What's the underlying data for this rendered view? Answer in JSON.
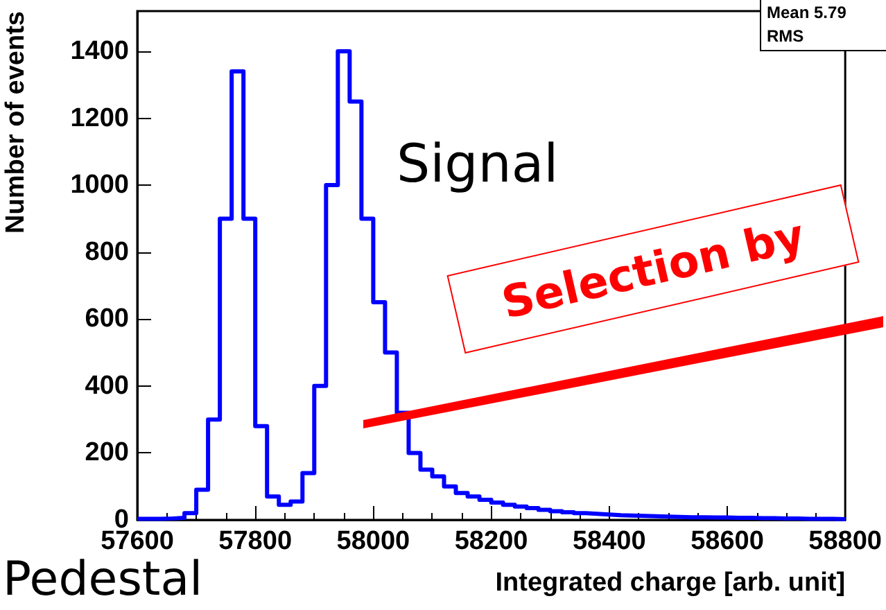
{
  "chart_data": {
    "type": "histogram",
    "xlabel": "Integrated charge [arb. unit]",
    "ylabel": "Number of events",
    "color": "#0000ff",
    "bins": [
      57600,
      57620,
      57640,
      57660,
      57680,
      57700,
      57720,
      57740,
      57760,
      57780,
      57800,
      57820,
      57840,
      57860,
      57880,
      57900,
      57920,
      57940,
      57960,
      57980,
      58000,
      58020,
      58040,
      58060,
      58080,
      58100,
      58120,
      58140,
      58160,
      58180,
      58200,
      58220,
      58240,
      58260,
      58280,
      58300,
      58320,
      58340,
      58360,
      58380,
      58400,
      58420,
      58440,
      58460,
      58480,
      58500,
      58520,
      58540,
      58560,
      58580,
      58600,
      58620,
      58640,
      58660,
      58680,
      58700,
      58720,
      58740,
      58760,
      58780,
      58800
    ],
    "values": [
      3,
      3,
      4,
      6,
      20,
      90,
      300,
      900,
      1340,
      900,
      280,
      70,
      45,
      55,
      140,
      400,
      1000,
      1400,
      1250,
      900,
      650,
      500,
      320,
      200,
      150,
      130,
      100,
      80,
      70,
      60,
      52,
      45,
      40,
      35,
      30,
      26,
      23,
      20,
      18,
      16,
      14,
      13,
      12,
      11,
      10,
      9,
      8,
      8,
      7,
      7,
      6,
      6,
      5,
      5,
      4,
      4,
      3,
      3,
      3,
      2
    ],
    "xlim": [
      57600,
      58800
    ],
    "xticks": [
      57600,
      57800,
      58000,
      58200,
      58400,
      58600,
      58800
    ],
    "ylim": [
      0,
      1520
    ],
    "yticks": [
      0,
      200,
      400,
      600,
      800,
      1000,
      1200,
      1400
    ],
    "grid": false,
    "annotations": [
      "Signal",
      "Selection by",
      "Pedestal",
      "Mean 5.79",
      "RMS"
    ]
  }
}
